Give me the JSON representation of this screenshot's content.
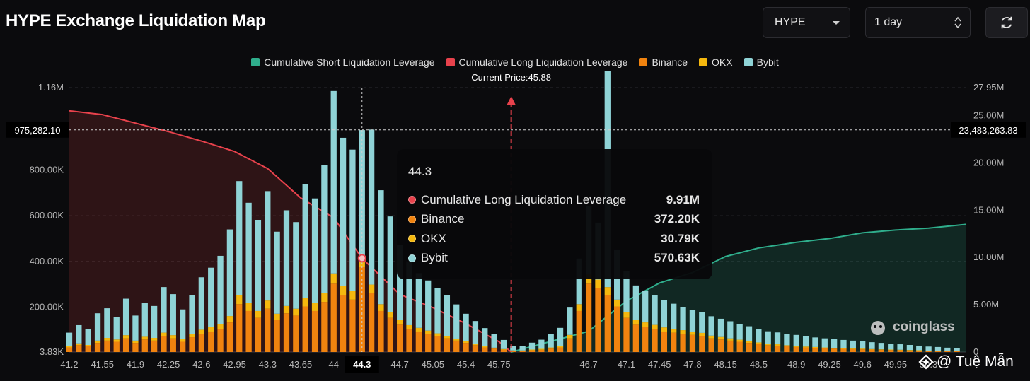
{
  "title": "HYPE Exchange Liquidation Map",
  "controls": {
    "symbol": "HYPE",
    "range": "1 day",
    "refresh_icon": "refresh-icon"
  },
  "colors": {
    "short": "#2fae8c",
    "long": "#e8424c",
    "binance": "#f0830f",
    "okx": "#f5b80e",
    "bybit": "#8fd3d6"
  },
  "legend": [
    {
      "label": "Cumulative Short Liquidation Leverage",
      "color": "#2fae8c"
    },
    {
      "label": "Cumulative Long Liquidation Leverage",
      "color": "#e8424c"
    },
    {
      "label": "Binance",
      "color": "#f0830f"
    },
    {
      "label": "OKX",
      "color": "#f5b80e"
    },
    {
      "label": "Bybit",
      "color": "#8fd3d6"
    }
  ],
  "current_price_label": "Current Price:45.88",
  "crosshair": {
    "left_value": "975,282.10",
    "right_value": "23,483,263.83",
    "x_value": "44.3"
  },
  "tooltip": {
    "title": "44.3",
    "rows": [
      {
        "label": "Cumulative Long Liquidation Leverage",
        "value": "9.91M",
        "color": "#e8424c"
      },
      {
        "label": "Binance",
        "value": "372.20K",
        "color": "#f0830f"
      },
      {
        "label": "OKX",
        "value": "30.79K",
        "color": "#f5b80e"
      },
      {
        "label": "Bybit",
        "value": "570.63K",
        "color": "#8fd3d6"
      }
    ]
  },
  "watermark": "coinglass",
  "credit": "@ Tuệ Mẫn",
  "chart_data": {
    "type": "bar",
    "title": "HYPE Exchange Liquidation Map",
    "current_price": 45.88,
    "x_min": 41.2,
    "x_max": 50.7,
    "x_ticks": [
      "41.2",
      "41.55",
      "41.9",
      "42.25",
      "42.6",
      "42.95",
      "43.3",
      "43.65",
      "44",
      "44.3",
      "44.7",
      "45.05",
      "45.4",
      "45.75",
      "46.7",
      "47.1",
      "47.45",
      "47.8",
      "48.15",
      "48.5",
      "48.9",
      "49.25",
      "49.6",
      "49.95",
      "50.3"
    ],
    "left_axis": {
      "ticks": [
        "3.83K",
        "200.00K",
        "400.00K",
        "600.00K",
        "800.00K",
        "1.16M"
      ],
      "values": [
        3830,
        200000,
        400000,
        600000,
        800000,
        1160000
      ],
      "ylim": [
        3830,
        1160000
      ]
    },
    "right_axis": {
      "ticks": [
        "0",
        "5.00M",
        "10.00M",
        "15.00M",
        "20.00M",
        "25.00M",
        "27.95M"
      ],
      "values": [
        0,
        5000000,
        10000000,
        15000000,
        20000000,
        25000000,
        27950000
      ],
      "ylim": [
        0,
        27950000
      ]
    },
    "cumulative_long": {
      "name": "Cumulative Long Liquidation Leverage",
      "x": [
        41.2,
        41.55,
        41.9,
        42.25,
        42.6,
        42.95,
        43.3,
        43.65,
        44.0,
        44.3,
        44.7,
        45.05,
        45.4,
        45.75,
        45.88
      ],
      "y": [
        25500000,
        25100000,
        24200000,
        23300000,
        22300000,
        21200000,
        19400000,
        16300000,
        14200000,
        9910000,
        6100000,
        4700000,
        3000000,
        1100000,
        0
      ]
    },
    "cumulative_short": {
      "name": "Cumulative Short Liquidation Leverage",
      "x": [
        45.88,
        46.7,
        47.1,
        47.45,
        47.8,
        48.15,
        48.5,
        48.9,
        49.25,
        49.6,
        49.95,
        50.3,
        50.7
      ],
      "y": [
        0,
        2200000,
        5400000,
        7300000,
        8400000,
        10100000,
        11000000,
        11600000,
        12000000,
        12600000,
        12900000,
        13100000,
        13500000
      ]
    },
    "bars": {
      "series": [
        "Binance",
        "OKX",
        "Bybit"
      ],
      "x": [
        41.2,
        41.3,
        41.4,
        41.5,
        41.6,
        41.7,
        41.8,
        41.9,
        42.0,
        42.1,
        42.2,
        42.3,
        42.4,
        42.5,
        42.6,
        42.7,
        42.8,
        42.9,
        43.0,
        43.1,
        43.2,
        43.3,
        43.4,
        43.5,
        43.6,
        43.7,
        43.8,
        43.9,
        44.0,
        44.1,
        44.2,
        44.3,
        44.4,
        44.5,
        44.6,
        44.7,
        44.8,
        44.9,
        45.0,
        45.1,
        45.2,
        45.3,
        45.4,
        45.5,
        45.6,
        45.7,
        45.8,
        45.9,
        46.0,
        46.1,
        46.2,
        46.3,
        46.4,
        46.5,
        46.6,
        46.7,
        46.8,
        46.9,
        47.0,
        47.1,
        47.2,
        47.3,
        47.4,
        47.5,
        47.6,
        47.7,
        47.8,
        47.9,
        48.0,
        48.1,
        48.2,
        48.3,
        48.4,
        48.5,
        48.6,
        48.7,
        48.8,
        48.9,
        49.0,
        49.1,
        49.2,
        49.3,
        49.4,
        49.5,
        49.6,
        49.7,
        49.8,
        49.9,
        50.0,
        50.1,
        50.2,
        50.3,
        50.4,
        50.5,
        50.6
      ],
      "binance": [
        20000,
        30000,
        25000,
        40000,
        50000,
        45000,
        60000,
        40000,
        55000,
        50000,
        70000,
        60000,
        45000,
        65000,
        80000,
        90000,
        100000,
        130000,
        210000,
        180000,
        150000,
        190000,
        140000,
        170000,
        160000,
        200000,
        180000,
        220000,
        300000,
        250000,
        230000,
        372200,
        260000,
        180000,
        150000,
        120000,
        100000,
        90000,
        80000,
        70000,
        60000,
        50000,
        40000,
        30000,
        20000,
        15000,
        10000,
        5000,
        5000,
        8000,
        10000,
        15000,
        20000,
        60000,
        180000,
        300000,
        280000,
        250000,
        200000,
        150000,
        120000,
        110000,
        100000,
        90000,
        85000,
        80000,
        75000,
        70000,
        60000,
        55000,
        50000,
        45000,
        40000,
        35000,
        30000,
        28000,
        25000,
        22000,
        20000,
        18000,
        16000,
        15000,
        14000,
        13000,
        12000,
        11000,
        10000,
        9000,
        8000,
        7000,
        6000,
        5000,
        5000,
        4000,
        4000
      ],
      "okx": [
        5000,
        8000,
        6000,
        10000,
        12000,
        10000,
        14000,
        10000,
        12000,
        12000,
        15000,
        14000,
        12000,
        15000,
        18000,
        20000,
        22000,
        28000,
        40000,
        35000,
        30000,
        36000,
        28000,
        32000,
        30000,
        36000,
        34000,
        40000,
        45000,
        40000,
        38000,
        30790,
        36000,
        30000,
        25000,
        20000,
        18000,
        16000,
        14000,
        12000,
        10000,
        9000,
        8000,
        6000,
        5000,
        4000,
        3000,
        2000,
        2000,
        3000,
        4000,
        5000,
        6000,
        15000,
        30000,
        40000,
        38000,
        35000,
        30000,
        25000,
        22000,
        20000,
        19000,
        18000,
        17000,
        16000,
        15000,
        14000,
        12000,
        11000,
        10000,
        9000,
        8000,
        7000,
        6000,
        6000,
        5000,
        5000,
        4000,
        4000,
        4000,
        3000,
        3000,
        3000,
        3000,
        2000,
        2000,
        2000,
        2000,
        2000,
        2000,
        1000,
        1000,
        1000,
        1000
      ],
      "bybit": [
        60000,
        80000,
        70000,
        120000,
        130000,
        100000,
        160000,
        110000,
        150000,
        140000,
        200000,
        180000,
        130000,
        170000,
        230000,
        260000,
        300000,
        380000,
        500000,
        440000,
        400000,
        480000,
        360000,
        420000,
        380000,
        500000,
        460000,
        560000,
        800000,
        650000,
        620000,
        570630,
        680000,
        500000,
        420000,
        330000,
        280000,
        240000,
        220000,
        200000,
        180000,
        150000,
        120000,
        100000,
        80000,
        60000,
        40000,
        20000,
        20000,
        30000,
        40000,
        60000,
        80000,
        120000,
        200000,
        300000,
        250000,
        950000,
        220000,
        180000,
        150000,
        140000,
        130000,
        120000,
        110000,
        100000,
        95000,
        90000,
        85000,
        80000,
        75000,
        70000,
        65000,
        60000,
        55000,
        52000,
        50000,
        48000,
        45000,
        42000,
        40000,
        38000,
        36000,
        34000,
        32000,
        30000,
        28000,
        26000,
        24000,
        22000,
        20000,
        18000,
        16000,
        14000,
        12000
      ]
    },
    "grid": true,
    "legend_position": "top-center"
  }
}
